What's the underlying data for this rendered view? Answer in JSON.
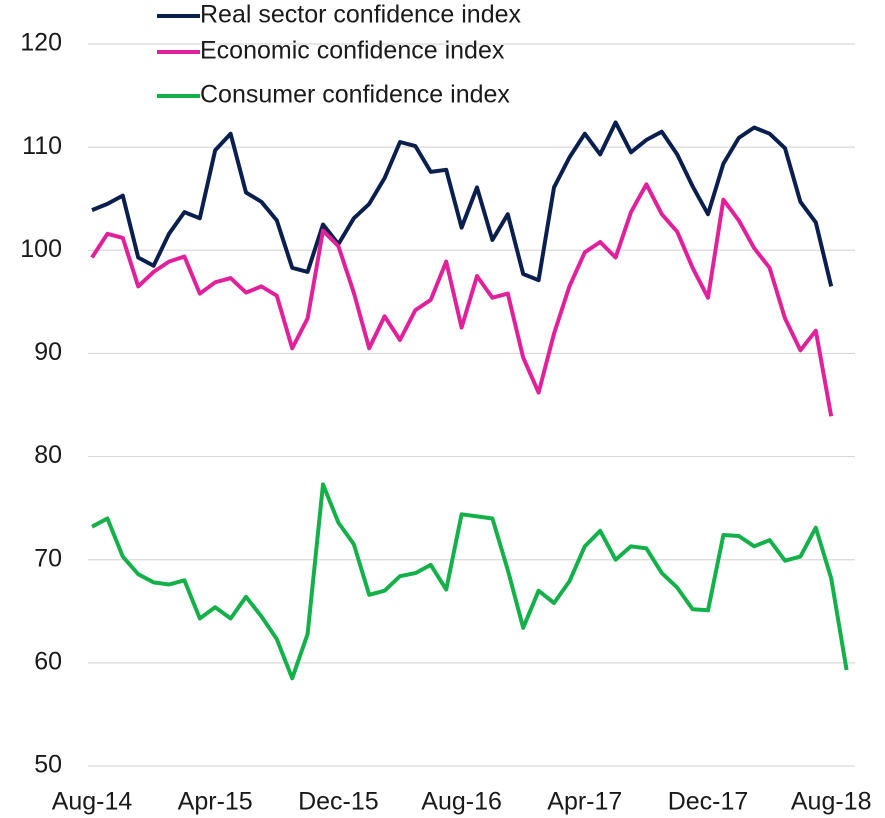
{
  "chart_data": {
    "type": "line",
    "categories": [
      "Aug-14",
      null,
      null,
      null,
      null,
      null,
      null,
      null,
      "Apr-15",
      null,
      null,
      null,
      null,
      null,
      null,
      null,
      "Dec-15",
      null,
      null,
      null,
      null,
      null,
      null,
      null,
      "Aug-16",
      null,
      null,
      null,
      null,
      null,
      null,
      null,
      "Apr-17",
      null,
      null,
      null,
      null,
      null,
      null,
      null,
      "Dec-17",
      null,
      null,
      null,
      null,
      null,
      null,
      null,
      "Aug-18",
      null
    ],
    "series": [
      {
        "name": "Real sector confidence index",
        "color": "#0b1f4f",
        "values": [
          103.9,
          104.5,
          105.3,
          99.3,
          98.5,
          101.6,
          103.7,
          103.1,
          109.7,
          111.3,
          105.6,
          104.7,
          102.9,
          98.3,
          97.9,
          102.5,
          100.6,
          103.1,
          104.5,
          107.0,
          110.5,
          110.1,
          107.6,
          107.8,
          102.2,
          106.1,
          101.0,
          103.5,
          97.7,
          97.1,
          106.1,
          109.0,
          111.3,
          109.3,
          112.4,
          109.5,
          110.7,
          111.5,
          109.3,
          106.2,
          103.5,
          108.4,
          110.9,
          111.9,
          111.3,
          109.9,
          104.7,
          102.7,
          96.5,
          null
        ]
      },
      {
        "name": "Economic confidence index",
        "color": "#e0219b",
        "values": [
          99.3,
          101.6,
          101.2,
          96.5,
          97.9,
          98.9,
          99.4,
          95.8,
          96.9,
          97.3,
          95.9,
          96.5,
          95.6,
          90.5,
          93.4,
          101.9,
          100.4,
          95.9,
          90.5,
          93.6,
          91.3,
          94.2,
          95.2,
          98.9,
          92.5,
          97.5,
          95.4,
          95.8,
          89.6,
          86.2,
          91.9,
          96.5,
          99.8,
          100.8,
          99.3,
          103.7,
          106.4,
          103.5,
          101.8,
          98.3,
          95.4,
          104.9,
          102.9,
          100.2,
          98.3,
          93.4,
          90.3,
          92.2,
          83.9,
          null
        ]
      },
      {
        "name": "Consumer confidence index",
        "color": "#14b04a",
        "values": [
          73.2,
          74.0,
          70.3,
          68.6,
          67.8,
          67.6,
          68.0,
          64.3,
          65.4,
          64.3,
          66.4,
          64.5,
          62.3,
          58.5,
          62.8,
          77.3,
          73.6,
          71.5,
          66.6,
          67.0,
          68.4,
          68.7,
          69.5,
          67.1,
          74.4,
          74.2,
          74.0,
          69.0,
          63.4,
          67.0,
          65.8,
          67.9,
          71.3,
          72.8,
          70.0,
          71.3,
          71.1,
          68.7,
          67.3,
          65.2,
          65.1,
          72.4,
          72.3,
          71.3,
          71.9,
          69.9,
          70.3,
          73.1,
          68.2,
          59.3
        ]
      }
    ],
    "ylim": [
      50,
      120
    ],
    "yticks": [
      50,
      60,
      70,
      80,
      90,
      100,
      110,
      120
    ],
    "grid": true,
    "legend": "top-left"
  }
}
